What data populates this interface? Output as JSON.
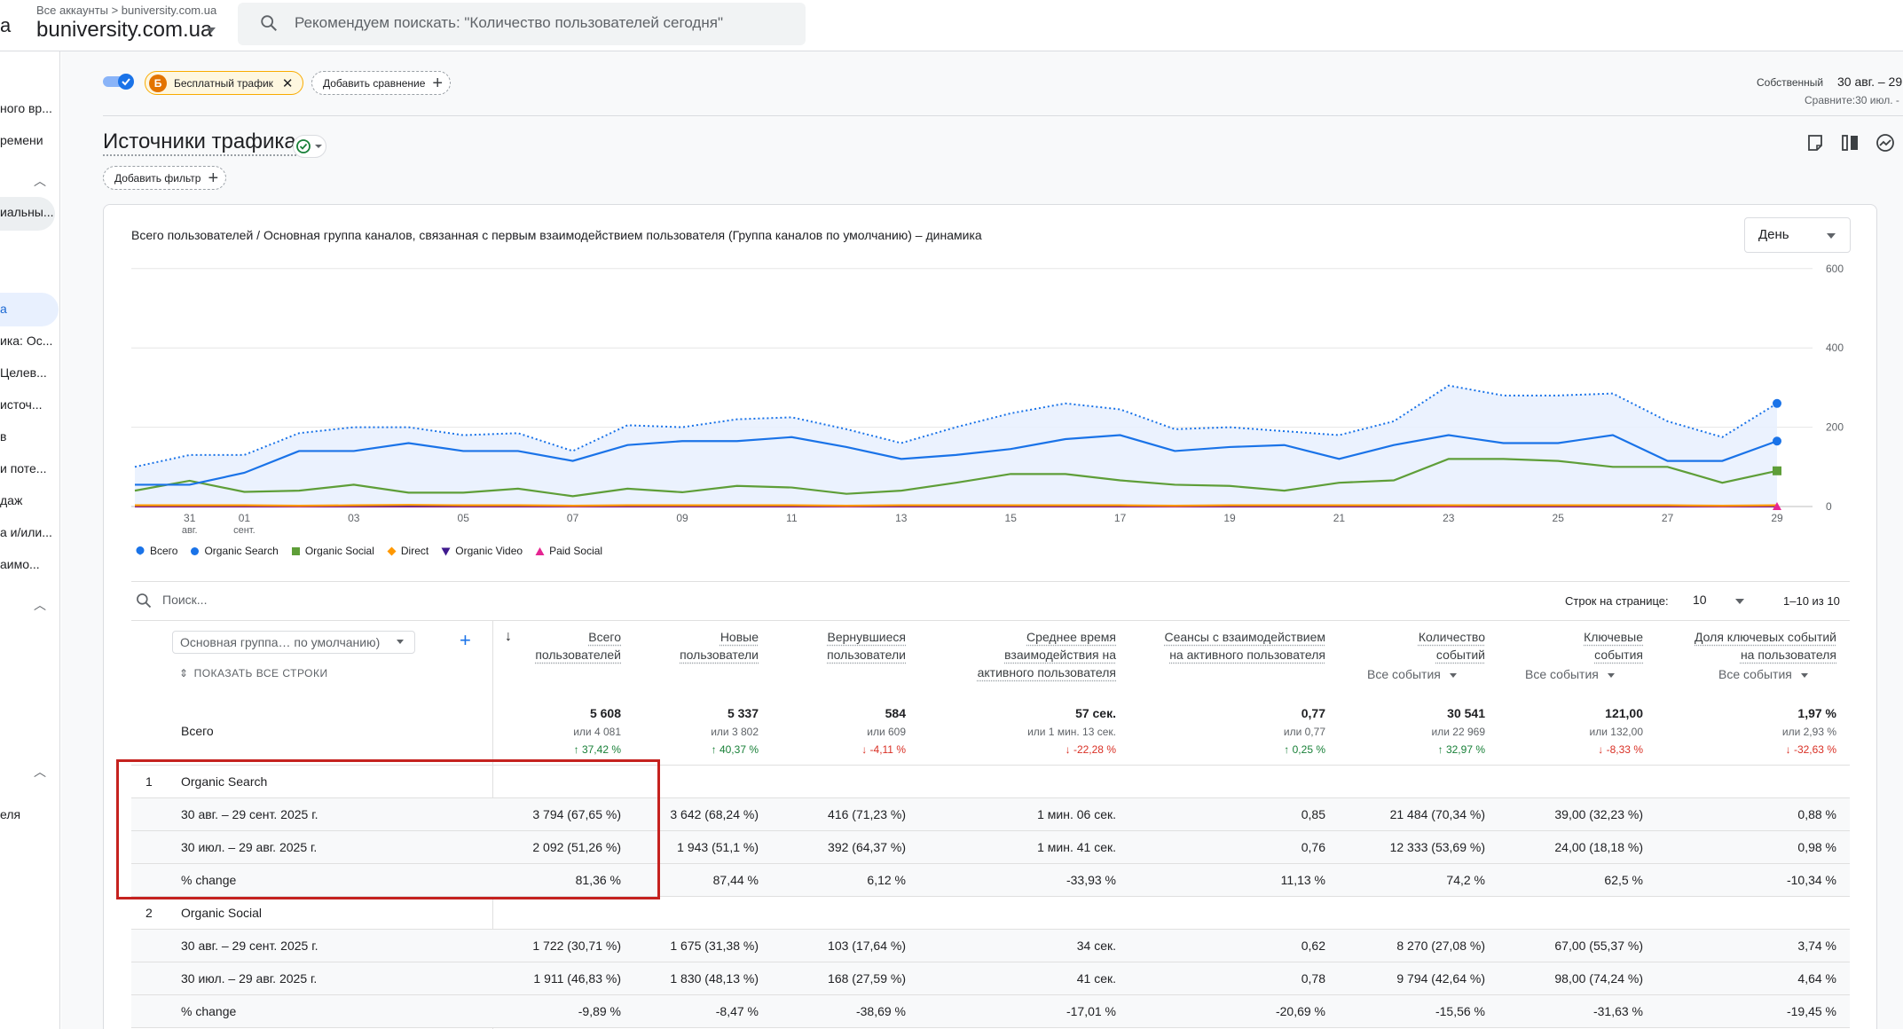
{
  "header": {
    "left_cut_text": "а",
    "breadcrumb": "Все аккаунты > buniversity.com.ua",
    "account": "buniversity.com.ua",
    "search_placeholder": "Рекомендуем поискать: \"Количество пользователей сегодня\""
  },
  "sidebar": {
    "items": [
      "ного вр...",
      "ремени",
      "иальны...",
      "а",
      "ика: Ос...",
      "Целев...",
      "источ...",
      "в",
      "и поте...",
      "даж",
      "а и/или...",
      "аимо...",
      "еля"
    ]
  },
  "controls": {
    "comparison_chip": "Бесплатный трафик",
    "comparison_badge": "Б",
    "add_comparison": "Добавить сравнение",
    "date_label": "Собственный",
    "date_value": "30 авг. – 29",
    "compare_text": "Сравните:30 июл. -",
    "page_title": "Источники трафика",
    "add_filter": "Добавить фильтр"
  },
  "chart_card": {
    "title": "Всего пользователей / Основная группа каналов, связанная с первым взаимодействием пользователя (Группа каналов по умолчанию) – динамика",
    "granularity": "День"
  },
  "chart_data": {
    "type": "line",
    "x": [
      "30",
      "31 авг.",
      "01 сент.",
      "02",
      "03",
      "04",
      "05",
      "06",
      "07",
      "08",
      "09",
      "10",
      "11",
      "12",
      "13",
      "14",
      "15",
      "16",
      "17",
      "18",
      "19",
      "20",
      "21",
      "22",
      "23",
      "24",
      "25",
      "26",
      "27",
      "28",
      "29"
    ],
    "x_tick_labels": [
      {
        "i": 1,
        "l1": "31",
        "l2": "авг."
      },
      {
        "i": 2,
        "l1": "01",
        "l2": "сент."
      },
      {
        "i": 4,
        "l1": "03",
        "l2": ""
      },
      {
        "i": 6,
        "l1": "05",
        "l2": ""
      },
      {
        "i": 8,
        "l1": "07",
        "l2": ""
      },
      {
        "i": 10,
        "l1": "09",
        "l2": ""
      },
      {
        "i": 12,
        "l1": "11",
        "l2": ""
      },
      {
        "i": 14,
        "l1": "13",
        "l2": ""
      },
      {
        "i": 16,
        "l1": "15",
        "l2": ""
      },
      {
        "i": 18,
        "l1": "17",
        "l2": ""
      },
      {
        "i": 20,
        "l1": "19",
        "l2": ""
      },
      {
        "i": 22,
        "l1": "21",
        "l2": ""
      },
      {
        "i": 24,
        "l1": "23",
        "l2": ""
      },
      {
        "i": 26,
        "l1": "25",
        "l2": ""
      },
      {
        "i": 28,
        "l1": "27",
        "l2": ""
      },
      {
        "i": 30,
        "l1": "29",
        "l2": ""
      }
    ],
    "y_ticks": [
      0,
      200,
      400,
      600
    ],
    "ylim": [
      0,
      600
    ],
    "grid": true,
    "series": [
      {
        "name": "Всего",
        "color": "#1a73e8",
        "dotted": true,
        "fill": true,
        "values": [
          100,
          130,
          130,
          185,
          200,
          200,
          180,
          185,
          140,
          205,
          200,
          220,
          225,
          195,
          160,
          200,
          235,
          260,
          245,
          195,
          200,
          190,
          180,
          215,
          305,
          280,
          280,
          285,
          215,
          175,
          260
        ]
      },
      {
        "name": "Organic Search",
        "color": "#1a73e8",
        "values": [
          55,
          55,
          85,
          140,
          140,
          160,
          140,
          140,
          115,
          155,
          165,
          165,
          175,
          150,
          120,
          130,
          145,
          170,
          180,
          140,
          150,
          155,
          120,
          155,
          180,
          160,
          160,
          180,
          115,
          115,
          165
        ]
      },
      {
        "name": "Organic Social",
        "color": "#5e9e38",
        "values": [
          40,
          65,
          37,
          40,
          55,
          35,
          35,
          45,
          26,
          45,
          36,
          52,
          48,
          32,
          40,
          60,
          82,
          82,
          66,
          55,
          52,
          40,
          60,
          66,
          120,
          120,
          115,
          100,
          100,
          60,
          90
        ]
      },
      {
        "name": "Direct",
        "color": "#ff9800",
        "values": [
          3,
          3,
          3,
          2,
          3,
          4,
          3,
          3,
          2,
          3,
          3,
          3,
          3,
          2,
          3,
          3,
          3,
          3,
          3,
          2,
          3,
          3,
          3,
          3,
          3,
          3,
          3,
          3,
          3,
          2,
          3
        ]
      },
      {
        "name": "Organic Video",
        "color": "#3f1a8e",
        "values": [
          1,
          1,
          1,
          1,
          1,
          1,
          1,
          1,
          1,
          1,
          1,
          1,
          1,
          1,
          1,
          1,
          1,
          1,
          1,
          1,
          1,
          1,
          1,
          1,
          2,
          1,
          1,
          1,
          1,
          1,
          1
        ]
      },
      {
        "name": "Paid Social",
        "color": "#e52592",
        "values": [
          0,
          0,
          0,
          0,
          0,
          0,
          0,
          0,
          0,
          0,
          0,
          0,
          0,
          0,
          0,
          0,
          0,
          0,
          0,
          0,
          0,
          0,
          0,
          0,
          0,
          0,
          0,
          0,
          0,
          0,
          0
        ]
      }
    ]
  },
  "table": {
    "search_placeholder": "Поиск...",
    "rows_per_page_label": "Строк на странице:",
    "rows_per_page_value": "10",
    "range": "1–10 из 10",
    "dimension_label": "Основная группа… по умолчанию)",
    "show_all_rows": "ПОКАЗАТЬ ВСЕ СТРОКИ",
    "sort_arrow": "↓",
    "columns": [
      {
        "l1": "Всего",
        "l2": "пользователей",
        "sub": ""
      },
      {
        "l1": "Новые",
        "l2": "пользователи",
        "sub": ""
      },
      {
        "l1": "Вернувшиеся",
        "l2": "пользователи",
        "sub": ""
      },
      {
        "l1": "Среднее время",
        "l2": "взаимодействия на",
        "l3": "активного пользователя",
        "sub": ""
      },
      {
        "l1": "Сеансы с взаимодействием",
        "l2": "на активного пользователя",
        "sub": ""
      },
      {
        "l1": "Количество",
        "l2": "событий",
        "sub": "Все события"
      },
      {
        "l1": "Ключевые",
        "l2": "события",
        "sub": "Все события"
      },
      {
        "l1": "Доля ключевых событий",
        "l2": "на пользователя",
        "sub": "Все события"
      }
    ],
    "totals_label": "Всего",
    "totals": [
      {
        "v": "5 608",
        "o": "или 4 081",
        "c": "↑ 37,42 %"
      },
      {
        "v": "5 337",
        "o": "или 3 802",
        "c": "↑ 40,37 %"
      },
      {
        "v": "584",
        "o": "или 609",
        "c": "↓ -4,11 %"
      },
      {
        "v": "57 сек.",
        "o": "или 1 мин. 13 сек.",
        "c": "↓ -22,28 %"
      },
      {
        "v": "0,77",
        "o": "или 0,77",
        "c": "↑ 0,25 %"
      },
      {
        "v": "30 541",
        "o": "или 22 969",
        "c": "↑ 32,97 %"
      },
      {
        "v": "121,00",
        "o": "или 132,00",
        "c": "↓ -8,33 %"
      },
      {
        "v": "1,97 %",
        "o": "или 2,93 %",
        "c": "↓ -32,63 %"
      }
    ],
    "groups": [
      {
        "num": "1",
        "name": "Organic Search",
        "rows": [
          {
            "label": "30 авг. – 29 сент. 2025 г.",
            "cells": [
              "3 794 (67,65 %)",
              "3 642 (68,24 %)",
              "416 (71,23 %)",
              "1 мин. 06 сек.",
              "0,85",
              "21 484 (70,34 %)",
              "39,00 (32,23 %)",
              "0,88 %"
            ]
          },
          {
            "label": "30 июл. – 29 авг. 2025 г.",
            "cells": [
              "2 092 (51,26 %)",
              "1 943 (51,1 %)",
              "392 (64,37 %)",
              "1 мин. 41 сек.",
              "0,76",
              "12 333 (53,69 %)",
              "24,00 (18,18 %)",
              "0,98 %"
            ]
          },
          {
            "label": "% change",
            "cells": [
              "81,36 %",
              "87,44 %",
              "6,12 %",
              "-33,93 %",
              "11,13 %",
              "74,2 %",
              "62,5 %",
              "-10,34 %"
            ]
          }
        ]
      },
      {
        "num": "2",
        "name": "Organic Social",
        "rows": [
          {
            "label": "30 авг. – 29 сент. 2025 г.",
            "cells": [
              "1 722 (30,71 %)",
              "1 675 (31,38 %)",
              "103 (17,64 %)",
              "34 сек.",
              "0,62",
              "8 270 (27,08 %)",
              "67,00 (55,37 %)",
              "3,74 %"
            ]
          },
          {
            "label": "30 июл. – 29 авг. 2025 г.",
            "cells": [
              "1 911 (46,83 %)",
              "1 830 (48,13 %)",
              "168 (27,59 %)",
              "41 сек.",
              "0,78",
              "9 794 (42,64 %)",
              "98,00 (74,24 %)",
              "4,64 %"
            ]
          },
          {
            "label": "% change",
            "cells": [
              "-9,89 %",
              "-8,47 %",
              "-38,69 %",
              "-17,01 %",
              "-20,69 %",
              "-15,56 %",
              "-31,63 %",
              "-19,45 %"
            ]
          }
        ]
      }
    ]
  }
}
